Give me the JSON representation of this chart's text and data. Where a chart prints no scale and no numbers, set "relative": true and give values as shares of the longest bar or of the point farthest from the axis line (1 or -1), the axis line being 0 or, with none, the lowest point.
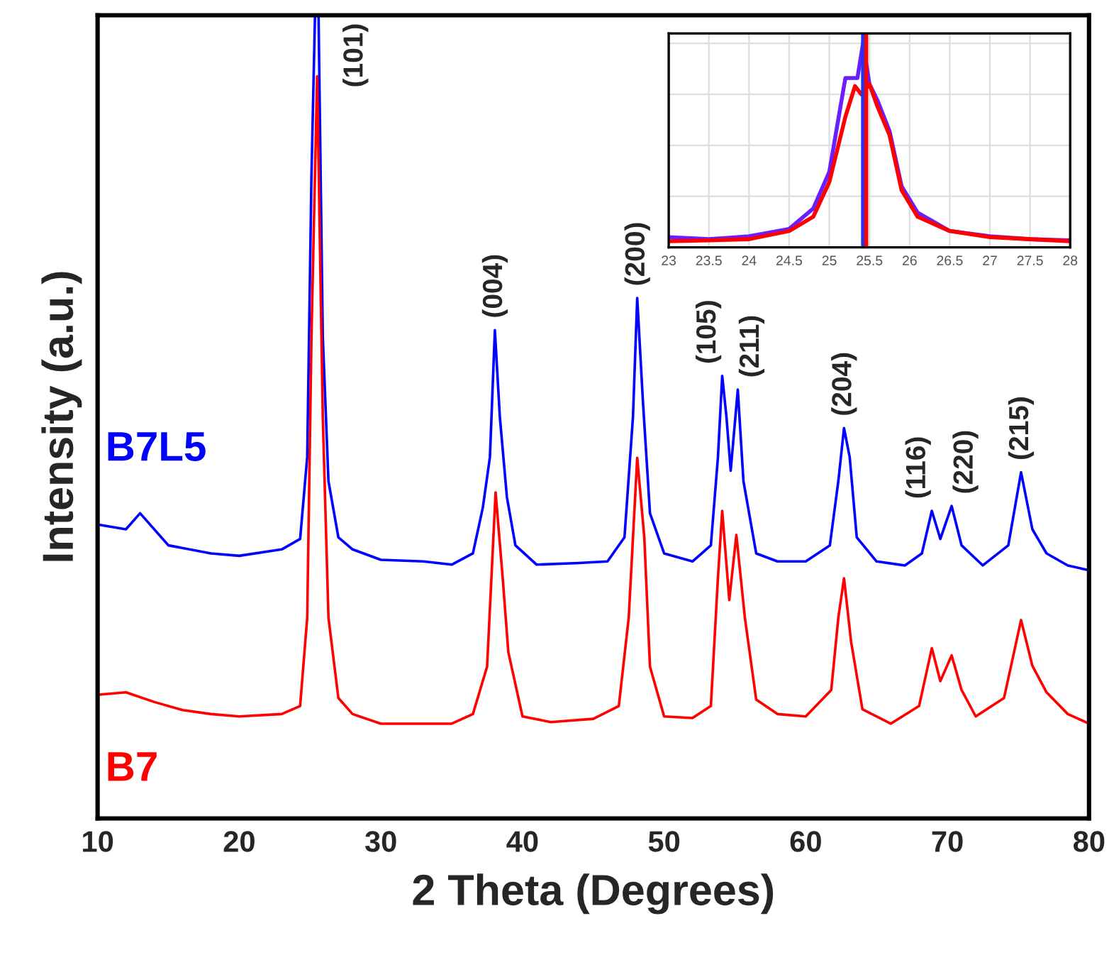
{
  "chart_data": [
    {
      "type": "line",
      "relative": true,
      "xlabel": "2 Theta (Degrees)",
      "ylabel": "Intensity (a.u.)",
      "xlim": [
        10,
        80
      ],
      "xticks": [
        10,
        20,
        30,
        40,
        50,
        60,
        70,
        80
      ],
      "grid": false,
      "tick_labels": "x",
      "series": [
        {
          "name": "B7L5",
          "color": "#0000ff",
          "x": [
            10,
            12,
            13,
            15,
            18,
            20,
            23,
            24.3,
            24.8,
            25.1,
            25.35,
            25.6,
            25.9,
            26.3,
            27,
            28,
            30,
            33,
            35,
            36.5,
            37.2,
            37.7,
            38.05,
            38.4,
            38.9,
            39.5,
            41,
            44,
            46,
            47.2,
            47.8,
            48.1,
            48.5,
            49,
            50,
            52,
            53.3,
            53.8,
            54.1,
            54.4,
            54.7,
            55.2,
            55.6,
            56.5,
            58,
            60,
            61.7,
            62.3,
            62.7,
            63.1,
            63.6,
            65,
            67,
            68.2,
            68.9,
            69.5,
            70.3,
            71,
            72.5,
            74.3,
            75.2,
            76,
            77,
            78.5,
            80
          ],
          "values": [
            0.366,
            0.36,
            0.38,
            0.34,
            0.33,
            0.327,
            0.335,
            0.348,
            0.45,
            0.8,
            1.0,
            1.0,
            0.6,
            0.42,
            0.35,
            0.335,
            0.322,
            0.32,
            0.316,
            0.33,
            0.387,
            0.45,
            0.608,
            0.5,
            0.4,
            0.34,
            0.316,
            0.318,
            0.32,
            0.35,
            0.5,
            0.648,
            0.52,
            0.38,
            0.33,
            0.32,
            0.34,
            0.45,
            0.551,
            0.5,
            0.433,
            0.534,
            0.42,
            0.33,
            0.32,
            0.32,
            0.34,
            0.42,
            0.486,
            0.45,
            0.35,
            0.32,
            0.315,
            0.33,
            0.383,
            0.348,
            0.389,
            0.34,
            0.315,
            0.34,
            0.431,
            0.36,
            0.33,
            0.315,
            0.309
          ]
        },
        {
          "name": "B7",
          "color": "#ff0000",
          "x": [
            10,
            12,
            14,
            16,
            18,
            20,
            23,
            24.3,
            24.8,
            25.1,
            25.5,
            25.9,
            26.3,
            27,
            28,
            30,
            33,
            35,
            36.5,
            37.5,
            38.1,
            38.6,
            39,
            40,
            42,
            45,
            46.8,
            47.5,
            48.1,
            48.6,
            49,
            50,
            52,
            53.3,
            53.8,
            54.1,
            54.6,
            55.1,
            55.7,
            56.5,
            58,
            60,
            61.8,
            62.3,
            62.7,
            63.2,
            64,
            66,
            68,
            68.9,
            69.5,
            70.3,
            71,
            72,
            74,
            75.2,
            76,
            77,
            78.5,
            80
          ],
          "values": [
            0.154,
            0.157,
            0.145,
            0.135,
            0.13,
            0.127,
            0.13,
            0.14,
            0.25,
            0.6,
            0.924,
            0.5,
            0.25,
            0.15,
            0.13,
            0.118,
            0.118,
            0.118,
            0.13,
            0.189,
            0.406,
            0.3,
            0.207,
            0.127,
            0.12,
            0.124,
            0.14,
            0.25,
            0.449,
            0.35,
            0.189,
            0.127,
            0.125,
            0.14,
            0.3,
            0.383,
            0.272,
            0.353,
            0.25,
            0.148,
            0.13,
            0.127,
            0.16,
            0.25,
            0.299,
            0.22,
            0.136,
            0.118,
            0.14,
            0.212,
            0.171,
            0.203,
            0.16,
            0.127,
            0.15,
            0.247,
            0.19,
            0.157,
            0.13,
            0.118
          ]
        }
      ],
      "annotations": [
        {
          "text": "(101)",
          "x": 25.35,
          "y": 1.0
        },
        {
          "text": "(004)",
          "x": 38.05,
          "y": 0.608
        },
        {
          "text": "(200)",
          "x": 48.1,
          "y": 0.648
        },
        {
          "text": "(105)",
          "x": 54.1,
          "y": 0.551
        },
        {
          "text": "(211)",
          "x": 55.2,
          "y": 0.534
        },
        {
          "text": "(204)",
          "x": 62.7,
          "y": 0.486
        },
        {
          "text": "(116)",
          "x": 68.9,
          "y": 0.383
        },
        {
          "text": "(220)",
          "x": 70.3,
          "y": 0.389
        },
        {
          "text": "(215)",
          "x": 75.2,
          "y": 0.431
        }
      ]
    },
    {
      "type": "line",
      "relative": true,
      "xlim": [
        23,
        28
      ],
      "xticks": [
        23,
        23.5,
        24,
        24.5,
        25,
        25.5,
        26,
        26.5,
        27,
        27.5,
        28
      ],
      "grid": true,
      "tick_labels": "x",
      "series": [
        {
          "color": "#6a1fff",
          "x": [
            23,
            23.5,
            24,
            24.5,
            24.8,
            25.0,
            25.2,
            25.35,
            25.42,
            25.5,
            25.6,
            25.75,
            25.9,
            26.1,
            26.5,
            27,
            27.5,
            28
          ],
          "values": [
            0.05,
            0.04,
            0.054,
            0.09,
            0.19,
            0.37,
            0.83,
            0.83,
            1.0,
            0.8,
            0.72,
            0.57,
            0.3,
            0.17,
            0.08,
            0.054,
            0.04,
            0.034
          ]
        },
        {
          "color": "#ff0000",
          "x": [
            23,
            23.5,
            24,
            24.5,
            24.8,
            25.0,
            25.2,
            25.32,
            25.4,
            25.5,
            25.6,
            25.75,
            25.9,
            26.1,
            26.5,
            27,
            27.5,
            28
          ],
          "values": [
            0.03,
            0.034,
            0.04,
            0.08,
            0.15,
            0.32,
            0.64,
            0.79,
            0.75,
            0.8,
            0.69,
            0.55,
            0.28,
            0.15,
            0.08,
            0.05,
            0.04,
            0.03
          ]
        }
      ],
      "ref_lines": [
        {
          "axis": "x",
          "value": 25.42,
          "color": "#2233ee"
        },
        {
          "axis": "x",
          "value": 25.46,
          "color": "#ff0000"
        }
      ]
    }
  ]
}
